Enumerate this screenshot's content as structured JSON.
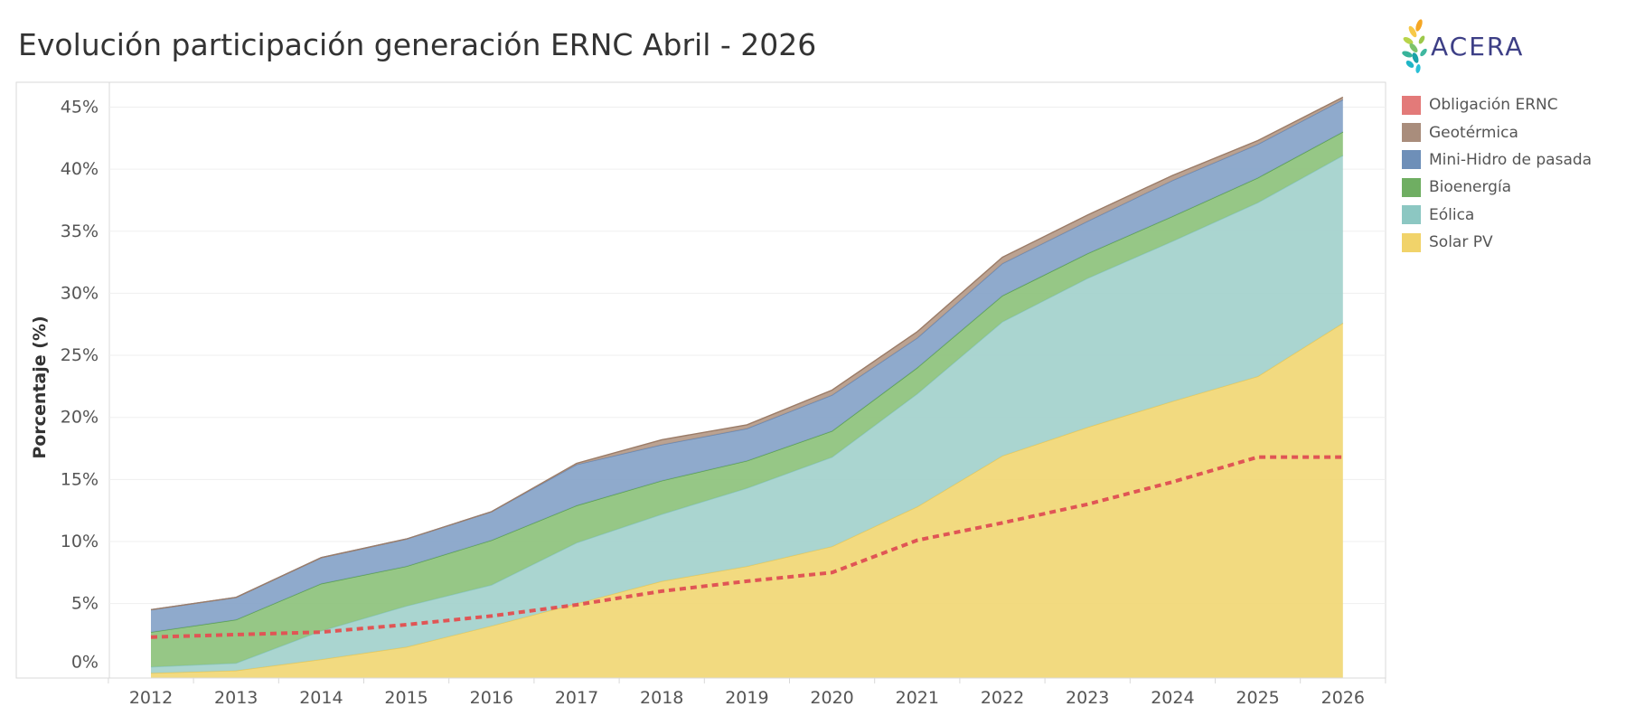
{
  "chart_data": {
    "type": "area",
    "title": "Evolución participación generación ERNC Abril - 2026",
    "ylabel": "Porcentaje (%)",
    "xlabel": "",
    "x": [
      "2012",
      "2013",
      "2014",
      "2015",
      "2016",
      "2017",
      "2018",
      "2019",
      "2020",
      "2021",
      "2022",
      "2023",
      "2024",
      "2025",
      "2026"
    ],
    "ylim": [
      -1,
      47
    ],
    "yticks": [
      0,
      5,
      10,
      15,
      20,
      25,
      30,
      35,
      40,
      45
    ],
    "ytick_labels": [
      "0%",
      "5%",
      "10%",
      "15%",
      "20%",
      "25%",
      "30%",
      "35%",
      "40%",
      "45%"
    ],
    "grid": true,
    "stacked": true,
    "series": [
      {
        "name": "Solar PV",
        "color": "#f1d775",
        "values": [
          -0.6,
          -0.4,
          0.5,
          1.5,
          3.2,
          5.0,
          6.8,
          8.0,
          9.6,
          12.8,
          16.9,
          19.2,
          21.3,
          23.3,
          27.6
        ]
      },
      {
        "name": "Eólica",
        "color": "#a3d1cc",
        "values": [
          0.5,
          0.6,
          2.3,
          3.3,
          3.3,
          4.9,
          5.4,
          6.3,
          7.2,
          9.1,
          10.8,
          12.0,
          12.9,
          14.0,
          13.5
        ]
      },
      {
        "name": "Bioenergía",
        "color": "#8dc27c",
        "values": [
          2.8,
          3.5,
          3.8,
          3.2,
          3.6,
          3.0,
          2.7,
          2.2,
          2.1,
          2.1,
          2.1,
          2.0,
          2.0,
          2.0,
          1.9
        ]
      },
      {
        "name": "Mini-Hidro de pasada",
        "color": "#86a3c8",
        "values": [
          1.8,
          1.8,
          2.1,
          2.2,
          2.3,
          3.3,
          2.9,
          2.6,
          2.9,
          2.4,
          2.6,
          2.6,
          2.9,
          2.7,
          2.6
        ]
      },
      {
        "name": "Geotérmica",
        "color": "#b59a88",
        "values": [
          0,
          0,
          0,
          0,
          0,
          0.1,
          0.4,
          0.3,
          0.4,
          0.5,
          0.5,
          0.5,
          0.4,
          0.3,
          0.2
        ]
      }
    ],
    "line_series": {
      "name": "Obligación ERNC",
      "color": "#e05555",
      "style": "dashed",
      "values": [
        2.3,
        2.5,
        2.7,
        3.3,
        4.0,
        4.9,
        6.0,
        6.8,
        7.5,
        10.1,
        11.5,
        13.0,
        14.8,
        16.8,
        16.8
      ]
    },
    "legend": {
      "position": "right",
      "items": [
        {
          "label": "Obligación ERNC",
          "color": "#e37a79"
        },
        {
          "label": "Geotérmica",
          "color": "#a98d7c"
        },
        {
          "label": "Mini-Hidro de pasada",
          "color": "#6e8fb8"
        },
        {
          "label": "Bioenergía",
          "color": "#6fae62"
        },
        {
          "label": "Eólica",
          "color": "#8cc7c2"
        },
        {
          "label": "Solar PV",
          "color": "#f1d36a"
        }
      ]
    }
  },
  "logo": {
    "text": "ACERA",
    "color": "#3d3f86"
  }
}
